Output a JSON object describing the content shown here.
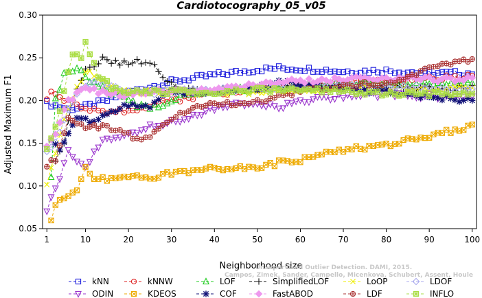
{
  "chart_data": {
    "type": "line",
    "title": "Cardiotocography_05_v05",
    "xlabel": "Neighborhood size",
    "ylabel": "Adjusted Maximum F1",
    "xlim": [
      0,
      101
    ],
    "ylim": [
      0.05,
      0.3
    ],
    "xticks": [
      1,
      10,
      20,
      30,
      40,
      50,
      60,
      70,
      80,
      90,
      100
    ],
    "yticks": [
      0.05,
      0.1,
      0.15,
      0.2,
      0.25,
      0.3
    ],
    "ytick_labels": [
      "0.05",
      "0.10",
      "0.15",
      "0.20",
      "0.25",
      "0.30"
    ],
    "grid": false,
    "legend_position": "bottom",
    "watermark_lines": [
      "Unsupervised Outlier Detection. DAMI, 2015.",
      "Campos, Zimek, Sander, Campello, Micenkova, Schubert, Assent, Houle"
    ],
    "series": [
      {
        "name": "kNN",
        "color": "#2222dd",
        "marker": "square",
        "x_start": 1,
        "x_end": 100,
        "anchors": [
          [
            1,
            0.197
          ],
          [
            3,
            0.194
          ],
          [
            6,
            0.19
          ],
          [
            10,
            0.193
          ],
          [
            15,
            0.2
          ],
          [
            20,
            0.21
          ],
          [
            30,
            0.222
          ],
          [
            40,
            0.23
          ],
          [
            50,
            0.236
          ],
          [
            55,
            0.238
          ],
          [
            60,
            0.237
          ],
          [
            65,
            0.236
          ],
          [
            70,
            0.234
          ],
          [
            80,
            0.235
          ],
          [
            90,
            0.232
          ],
          [
            100,
            0.232
          ]
        ]
      },
      {
        "name": "kNNW",
        "color": "#dd2222",
        "marker": "circle",
        "x_start": 1,
        "x_end": 100,
        "anchors": [
          [
            1,
            0.203
          ],
          [
            2,
            0.208
          ],
          [
            4,
            0.206
          ],
          [
            7,
            0.195
          ],
          [
            10,
            0.188
          ],
          [
            15,
            0.187
          ],
          [
            20,
            0.188
          ],
          [
            30,
            0.2
          ],
          [
            40,
            0.208
          ],
          [
            50,
            0.213
          ],
          [
            60,
            0.217
          ],
          [
            70,
            0.22
          ],
          [
            80,
            0.223
          ],
          [
            90,
            0.226
          ],
          [
            100,
            0.228
          ]
        ]
      },
      {
        "name": "LOF",
        "color": "#22cc22",
        "marker": "triangle",
        "x_start": 2,
        "x_end": 100,
        "anchors": [
          [
            2,
            0.11
          ],
          [
            3,
            0.2
          ],
          [
            5,
            0.23
          ],
          [
            8,
            0.24
          ],
          [
            10,
            0.225
          ],
          [
            14,
            0.215
          ],
          [
            18,
            0.205
          ],
          [
            22,
            0.195
          ],
          [
            27,
            0.192
          ],
          [
            32,
            0.205
          ],
          [
            40,
            0.212
          ],
          [
            50,
            0.214
          ],
          [
            60,
            0.218
          ],
          [
            70,
            0.22
          ],
          [
            80,
            0.22
          ],
          [
            90,
            0.219
          ],
          [
            100,
            0.219
          ]
        ]
      },
      {
        "name": "SimplifiedLOF",
        "color": "#111111",
        "marker": "plus",
        "x_start": 3,
        "x_end": 100,
        "anchors": [
          [
            3,
            0.13
          ],
          [
            5,
            0.15
          ],
          [
            7,
            0.2
          ],
          [
            10,
            0.235
          ],
          [
            14,
            0.248
          ],
          [
            18,
            0.243
          ],
          [
            22,
            0.246
          ],
          [
            25,
            0.245
          ],
          [
            28,
            0.228
          ],
          [
            32,
            0.212
          ],
          [
            40,
            0.212
          ],
          [
            50,
            0.214
          ],
          [
            60,
            0.215
          ],
          [
            70,
            0.216
          ],
          [
            80,
            0.215
          ],
          [
            90,
            0.214
          ],
          [
            100,
            0.215
          ]
        ]
      },
      {
        "name": "LoOP",
        "color": "#eeee00",
        "marker": "x",
        "x_start": 1,
        "x_end": 100,
        "anchors": [
          [
            1,
            0.1
          ],
          [
            3,
            0.14
          ],
          [
            5,
            0.18
          ],
          [
            8,
            0.215
          ],
          [
            10,
            0.235
          ],
          [
            14,
            0.222
          ],
          [
            18,
            0.21
          ],
          [
            22,
            0.21
          ],
          [
            30,
            0.21
          ],
          [
            40,
            0.208
          ],
          [
            50,
            0.21
          ],
          [
            60,
            0.212
          ],
          [
            70,
            0.214
          ],
          [
            80,
            0.214
          ],
          [
            90,
            0.213
          ],
          [
            100,
            0.214
          ]
        ]
      },
      {
        "name": "LDOF",
        "color": "#aaaaee",
        "marker": "diamond",
        "x_start": 1,
        "x_end": 100,
        "anchors": [
          [
            1,
            0.14
          ],
          [
            3,
            0.15
          ],
          [
            6,
            0.19
          ],
          [
            9,
            0.215
          ],
          [
            12,
            0.225
          ],
          [
            16,
            0.215
          ],
          [
            20,
            0.21
          ],
          [
            30,
            0.21
          ],
          [
            40,
            0.212
          ],
          [
            50,
            0.214
          ],
          [
            60,
            0.216
          ],
          [
            70,
            0.218
          ],
          [
            80,
            0.216
          ],
          [
            90,
            0.214
          ],
          [
            100,
            0.212
          ]
        ]
      },
      {
        "name": "ODIN",
        "color": "#9933cc",
        "marker": "triangle-down",
        "x_start": 1,
        "x_end": 100,
        "anchors": [
          [
            1,
            0.073
          ],
          [
            2,
            0.087
          ],
          [
            4,
            0.11
          ],
          [
            6,
            0.14
          ],
          [
            10,
            0.12
          ],
          [
            14,
            0.155
          ],
          [
            20,
            0.16
          ],
          [
            25,
            0.17
          ],
          [
            30,
            0.175
          ],
          [
            35,
            0.182
          ],
          [
            40,
            0.19
          ],
          [
            45,
            0.196
          ],
          [
            50,
            0.194
          ],
          [
            55,
            0.192
          ],
          [
            60,
            0.2
          ],
          [
            70,
            0.205
          ],
          [
            80,
            0.207
          ],
          [
            90,
            0.205
          ],
          [
            100,
            0.203
          ]
        ]
      },
      {
        "name": "KDEOS",
        "color": "#eeaa00",
        "marker": "square-x",
        "x_start": 2,
        "x_end": 100,
        "anchors": [
          [
            2,
            0.058
          ],
          [
            3,
            0.08
          ],
          [
            5,
            0.088
          ],
          [
            8,
            0.095
          ],
          [
            10,
            0.12
          ],
          [
            12,
            0.11
          ],
          [
            15,
            0.107
          ],
          [
            20,
            0.11
          ],
          [
            25,
            0.11
          ],
          [
            30,
            0.115
          ],
          [
            40,
            0.12
          ],
          [
            50,
            0.122
          ],
          [
            55,
            0.127
          ],
          [
            60,
            0.13
          ],
          [
            70,
            0.142
          ],
          [
            80,
            0.148
          ],
          [
            90,
            0.158
          ],
          [
            100,
            0.171
          ]
        ]
      },
      {
        "name": "COF",
        "color": "#111177",
        "marker": "asterisk",
        "x_start": 2,
        "x_end": 100,
        "anchors": [
          [
            2,
            0.153
          ],
          [
            4,
            0.14
          ],
          [
            6,
            0.16
          ],
          [
            8,
            0.18
          ],
          [
            12,
            0.175
          ],
          [
            16,
            0.185
          ],
          [
            20,
            0.195
          ],
          [
            25,
            0.193
          ],
          [
            30,
            0.21
          ],
          [
            40,
            0.21
          ],
          [
            50,
            0.215
          ],
          [
            56,
            0.222
          ],
          [
            60,
            0.218
          ],
          [
            70,
            0.212
          ],
          [
            80,
            0.21
          ],
          [
            90,
            0.205
          ],
          [
            100,
            0.2
          ]
        ]
      },
      {
        "name": "FastABOD",
        "color": "#ee99ee",
        "marker": "diamond-filled",
        "x_start": 1,
        "x_end": 100,
        "anchors": [
          [
            1,
            0.145
          ],
          [
            3,
            0.16
          ],
          [
            6,
            0.2
          ],
          [
            10,
            0.215
          ],
          [
            15,
            0.208
          ],
          [
            20,
            0.207
          ],
          [
            30,
            0.212
          ],
          [
            40,
            0.212
          ],
          [
            50,
            0.218
          ],
          [
            60,
            0.223
          ],
          [
            70,
            0.225
          ],
          [
            80,
            0.226
          ],
          [
            90,
            0.225
          ],
          [
            100,
            0.225
          ]
        ]
      },
      {
        "name": "LDF",
        "color": "#aa3333",
        "marker": "circle-plus",
        "x_start": 1,
        "x_end": 100,
        "anchors": [
          [
            1,
            0.125
          ],
          [
            3,
            0.13
          ],
          [
            6,
            0.18
          ],
          [
            10,
            0.17
          ],
          [
            15,
            0.168
          ],
          [
            20,
            0.16
          ],
          [
            22,
            0.155
          ],
          [
            25,
            0.158
          ],
          [
            30,
            0.18
          ],
          [
            35,
            0.192
          ],
          [
            40,
            0.195
          ],
          [
            50,
            0.198
          ],
          [
            55,
            0.205
          ],
          [
            60,
            0.21
          ],
          [
            70,
            0.218
          ],
          [
            80,
            0.22
          ],
          [
            85,
            0.228
          ],
          [
            90,
            0.238
          ],
          [
            95,
            0.242
          ],
          [
            100,
            0.248
          ]
        ]
      },
      {
        "name": "INFLO",
        "color": "#aadd44",
        "marker": "star-square",
        "x_start": 1,
        "x_end": 100,
        "anchors": [
          [
            1,
            0.145
          ],
          [
            3,
            0.17
          ],
          [
            5,
            0.21
          ],
          [
            7,
            0.253
          ],
          [
            9,
            0.25
          ],
          [
            10,
            0.268
          ],
          [
            13,
            0.23
          ],
          [
            16,
            0.215
          ],
          [
            20,
            0.21
          ],
          [
            30,
            0.21
          ],
          [
            40,
            0.21
          ],
          [
            50,
            0.212
          ],
          [
            60,
            0.213
          ],
          [
            70,
            0.21
          ],
          [
            80,
            0.208
          ],
          [
            90,
            0.208
          ],
          [
            100,
            0.208
          ]
        ]
      }
    ]
  }
}
